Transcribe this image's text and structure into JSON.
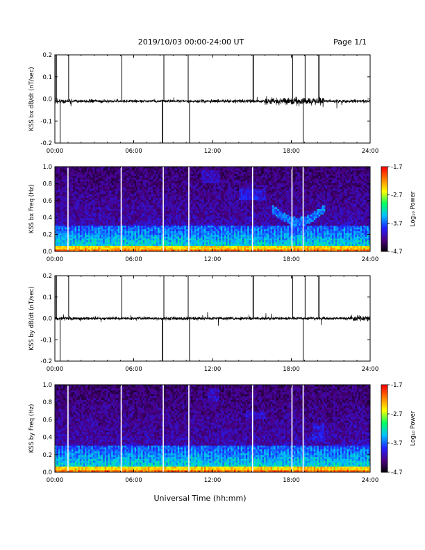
{
  "header": {
    "date_range": "2019/10/03  00:00-24:00 UT",
    "page": "Page 1/1"
  },
  "xlabel": "Universal Time (hh:mm)",
  "colorbar": {
    "label": "Log₁₀ Power",
    "ticks": [
      "-1.7",
      "-2.7",
      "-3.7",
      "-4.7"
    ],
    "min": -4.7,
    "max": -1.7,
    "colors": [
      "#000000",
      "#4b0082",
      "#2020ff",
      "#00c0ff",
      "#00ff60",
      "#ffff00",
      "#ff8000",
      "#ff0000"
    ]
  },
  "chart_data": [
    {
      "type": "line",
      "panel": "time-series",
      "ylabel": "KSS bx dB/dt (nT/sec)",
      "xlim": [
        0,
        24
      ],
      "ylim": [
        -0.2,
        0.2
      ],
      "x_ticks": [
        "00:00",
        "06:00",
        "12:00",
        "18:00",
        "24:00"
      ],
      "y_ticks": [
        "-0.2",
        "-0.1",
        "0.0",
        "0.1",
        "0.2"
      ],
      "baseline": -0.01,
      "spike_hours": [
        0.1,
        0.4,
        1.05,
        5.1,
        8.2,
        8.3,
        10.15,
        10.25,
        15.1,
        18.1,
        18.9,
        19.05,
        20.1
      ],
      "noisy_interval": [
        16.0,
        20.5
      ]
    },
    {
      "type": "heatmap",
      "panel": "spectrogram",
      "ylabel": "KSS bx Freq (Hz)",
      "xlim": [
        0,
        24
      ],
      "ylim": [
        0,
        1.0
      ],
      "x_ticks": [
        "00:00",
        "06:00",
        "12:00",
        "18:00",
        "24:00"
      ],
      "y_ticks": [
        "0.0",
        "0.2",
        "0.4",
        "0.6",
        "0.8",
        "1.0"
      ],
      "gap_hours": [
        1.0,
        5.05,
        8.25,
        10.2,
        15.05,
        18.05,
        18.9
      ]
    },
    {
      "type": "line",
      "panel": "time-series",
      "ylabel": "KSS by dB/dt (nT/sec)",
      "xlim": [
        0,
        24
      ],
      "ylim": [
        -0.2,
        0.2
      ],
      "x_ticks": [
        "00:00",
        "06:00",
        "12:00",
        "18:00",
        "24:00"
      ],
      "y_ticks": [
        "-0.2",
        "-0.1",
        "0.0",
        "0.1",
        "0.2"
      ],
      "baseline": 0.0,
      "spike_hours": [
        0.1,
        0.4,
        1.05,
        5.1,
        8.2,
        8.3,
        10.15,
        10.25,
        15.1,
        18.1,
        18.9,
        19.05,
        20.1
      ],
      "noisy_interval": [
        22.5,
        24.0
      ]
    },
    {
      "type": "heatmap",
      "panel": "spectrogram",
      "ylabel": "KSS by Freq (Hz)",
      "xlim": [
        0,
        24
      ],
      "ylim": [
        0,
        1.0
      ],
      "x_ticks": [
        "00:00",
        "06:00",
        "12:00",
        "18:00",
        "24:00"
      ],
      "y_ticks": [
        "0.0",
        "0.2",
        "0.4",
        "0.6",
        "0.8",
        "1.0"
      ],
      "gap_hours": [
        1.0,
        5.05,
        8.25,
        10.2,
        15.05,
        18.05,
        18.9
      ]
    }
  ]
}
